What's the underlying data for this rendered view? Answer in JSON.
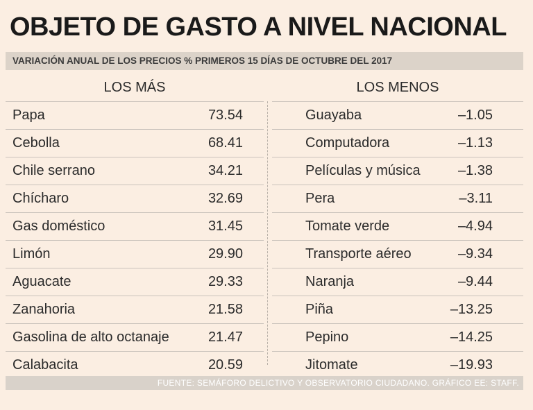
{
  "title": "OBJETO DE GASTO A NIVEL NACIONAL",
  "subtitle": "VARIACIÓN ANUAL DE LOS PRECIOS %  PRIMEROS 15 DÍAS DE OCTUBRE DEL 2017",
  "source": "FUENTE: SEMÁFORO DELICTIVO Y OBSERVATORIO CIUDADANO. GRÁFICO EE: STAFF.",
  "chart_data": {
    "type": "table",
    "title": "OBJETO DE GASTO A NIVEL NACIONAL",
    "subtitle": "VARIACIÓN ANUAL DE LOS PRECIOS %  PRIMEROS 15 DÍAS DE OCTUBRE DEL 2017",
    "tables": [
      {
        "header": "LOS MÁS",
        "rows": [
          {
            "label": "Papa",
            "value": "73.54"
          },
          {
            "label": "Cebolla",
            "value": "68.41"
          },
          {
            "label": "Chile serrano",
            "value": "34.21"
          },
          {
            "label": "Chícharo",
            "value": "32.69"
          },
          {
            "label": "Gas doméstico",
            "value": "31.45"
          },
          {
            "label": "Limón",
            "value": "29.90"
          },
          {
            "label": "Aguacate",
            "value": "29.33"
          },
          {
            "label": "Zanahoria",
            "value": "21.58"
          },
          {
            "label": "Gasolina de alto octanaje",
            "value": "21.47"
          },
          {
            "label": "Calabacita",
            "value": "20.59"
          }
        ]
      },
      {
        "header": "LOS MENOS",
        "rows": [
          {
            "label": "Guayaba",
            "value": "–1.05"
          },
          {
            "label": "Computadora",
            "value": "–1.13"
          },
          {
            "label": "Películas y música",
            "value": "–1.38"
          },
          {
            "label": "Pera",
            "value": "–3.11"
          },
          {
            "label": "Tomate verde",
            "value": "–4.94"
          },
          {
            "label": "Transporte aéreo",
            "value": "–9.34"
          },
          {
            "label": "Naranja",
            "value": "–9.44"
          },
          {
            "label": "Piña",
            "value": "–13.25"
          },
          {
            "label": "Pepino",
            "value": "–14.25"
          },
          {
            "label": "Jitomate",
            "value": "–19.93"
          }
        ]
      }
    ]
  }
}
